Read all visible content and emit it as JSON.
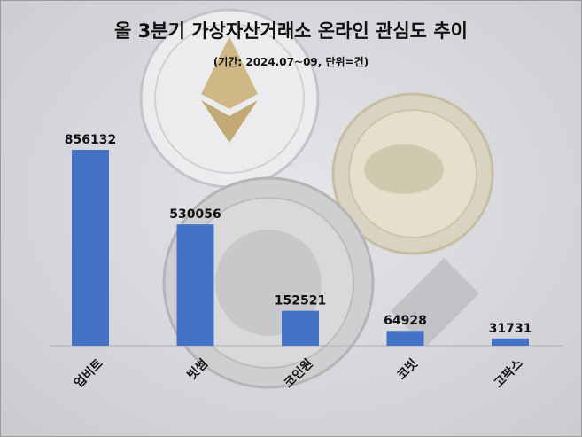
{
  "chart_data": {
    "type": "bar",
    "title": "올 3분기 가상자산거래소 온라인 관심도 추이",
    "subtitle": "(기간: 2024.07~09, 단위=건)",
    "categories": [
      "업비트",
      "빗썸",
      "코인원",
      "코빗",
      "고팍스"
    ],
    "values": [
      856132,
      530056,
      152521,
      64928,
      31731
    ],
    "value_labels": [
      "856132",
      "530056",
      "152521",
      "64928",
      "31731"
    ],
    "xlabel": "",
    "ylabel": "",
    "ylim": [
      0,
      856132
    ],
    "grid": false,
    "legend": "none",
    "bar_color": "#4472C4",
    "background_image": "cryptocurrency-coins-photo"
  }
}
